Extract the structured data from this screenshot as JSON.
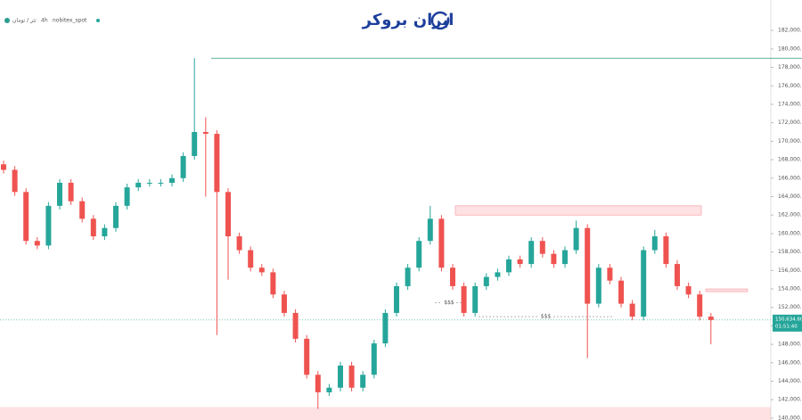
{
  "header": {
    "symbol": "تتر / تومان",
    "interval": "4h",
    "exchange": "nobitex_spot",
    "watermark": "ایران بروکر"
  },
  "chart_data": {
    "type": "candlestick",
    "open": [
      167500,
      166900,
      164500,
      159200,
      158700,
      163000,
      165500,
      163500,
      161600,
      159700,
      160600,
      163000,
      165000,
      165500,
      165500,
      165500,
      166000,
      168400,
      171000,
      170800,
      164500,
      159700,
      158200,
      156300,
      155800,
      153400,
      151400,
      148600,
      144700,
      142800,
      143300,
      145700,
      143300,
      144700,
      148100,
      151400,
      154300,
      156300,
      159200,
      161600,
      156300,
      154300,
      151400,
      154300,
      155300,
      155800,
      157200,
      156700,
      159200,
      157800,
      156700,
      158200,
      160600,
      152400,
      156300,
      154900,
      152400,
      151000,
      158200,
      159700,
      156700,
      154300,
      153400,
      151000
    ],
    "high": [
      167900,
      167300,
      164900,
      159600,
      163400,
      165900,
      165900,
      163900,
      162000,
      161000,
      163400,
      165400,
      165900,
      165900,
      165900,
      166400,
      168800,
      179000,
      172600,
      171200,
      164900,
      160100,
      158600,
      156700,
      156200,
      153800,
      151800,
      149000,
      145100,
      143700,
      146100,
      146100,
      145100,
      148500,
      151800,
      154700,
      156700,
      159600,
      163000,
      162000,
      156700,
      154700,
      154700,
      155700,
      156200,
      157600,
      157600,
      159600,
      159600,
      158200,
      158600,
      161400,
      161000,
      156700,
      156700,
      155300,
      152800,
      158600,
      160400,
      160100,
      157100,
      154700,
      153800,
      151400
    ],
    "low": [
      166500,
      164100,
      158800,
      158300,
      158300,
      162600,
      163100,
      161200,
      159300,
      159300,
      160200,
      162600,
      164600,
      165100,
      165100,
      165100,
      165600,
      168000,
      164000,
      149000,
      155000,
      157800,
      155900,
      155400,
      153000,
      151000,
      148200,
      144300,
      141000,
      142400,
      142900,
      142900,
      142900,
      144300,
      147700,
      151000,
      153900,
      155900,
      158800,
      155900,
      153900,
      151000,
      151000,
      153900,
      154900,
      155400,
      156300,
      156300,
      157400,
      156300,
      156300,
      157800,
      146500,
      152000,
      154500,
      152000,
      150600,
      150600,
      157800,
      156300,
      153900,
      153000,
      150600,
      148000
    ],
    "close": [
      166900,
      164500,
      159200,
      158700,
      163000,
      165500,
      163500,
      161600,
      159700,
      160600,
      163000,
      165000,
      165500,
      165500,
      165500,
      166000,
      168400,
      171000,
      170800,
      164500,
      159700,
      158200,
      156300,
      155800,
      153400,
      151400,
      148600,
      144700,
      142800,
      143300,
      145700,
      143300,
      144700,
      148100,
      151400,
      154300,
      156300,
      159200,
      161600,
      156300,
      154300,
      151400,
      154300,
      155300,
      155800,
      157200,
      156700,
      159200,
      157800,
      156700,
      158200,
      160600,
      152400,
      156300,
      154900,
      152400,
      151000,
      158200,
      159700,
      156700,
      154300,
      153400,
      151000,
      150634.6
    ],
    "up_color": "#26a69a",
    "down_color": "#ef5350",
    "ylim": [
      139800,
      185300
    ],
    "yticks": [
      {
        "value": 140000,
        "label": "140,000.00"
      },
      {
        "value": 142000,
        "label": "142,000.00"
      },
      {
        "value": 144000,
        "label": "144,000.00"
      },
      {
        "value": 146000,
        "label": "146,000.00"
      },
      {
        "value": 148000,
        "label": "148,000.00"
      },
      {
        "value": 150000,
        "label": "150,000.00"
      },
      {
        "value": 152000,
        "label": "152,000.00"
      },
      {
        "value": 154000,
        "label": "154,000.00"
      },
      {
        "value": 156000,
        "label": "156,000.00"
      },
      {
        "value": 158000,
        "label": "158,000.00"
      },
      {
        "value": 160000,
        "label": "160,000.00"
      },
      {
        "value": 162000,
        "label": "162,000.00"
      },
      {
        "value": 164000,
        "label": "164,000.00"
      },
      {
        "value": 166000,
        "label": "166,000.00"
      },
      {
        "value": 168000,
        "label": "168,000.00"
      },
      {
        "value": 170000,
        "label": "170,000.00"
      },
      {
        "value": 172000,
        "label": "172,000.00"
      },
      {
        "value": 174000,
        "label": "174,000.00"
      },
      {
        "value": 176000,
        "label": "176,000.00"
      },
      {
        "value": 178000,
        "label": "178,000.00"
      },
      {
        "value": 180000,
        "label": "180,000.00"
      },
      {
        "value": 182000,
        "label": "182,000.00"
      }
    ],
    "last_price": {
      "value": 150634.6,
      "label": "150,634.60"
    },
    "countdown": "01:51:40",
    "resistance_line": 179000,
    "zones": [
      {
        "low": 162000,
        "high": 163000
      },
      {
        "low": 153700,
        "high": 154000
      },
      {
        "low": 139800,
        "high": 141200
      }
    ],
    "liquidity": [
      {
        "value": 152500,
        "label": "$$$"
      },
      {
        "value": 151000,
        "label": "$$$"
      }
    ]
  }
}
